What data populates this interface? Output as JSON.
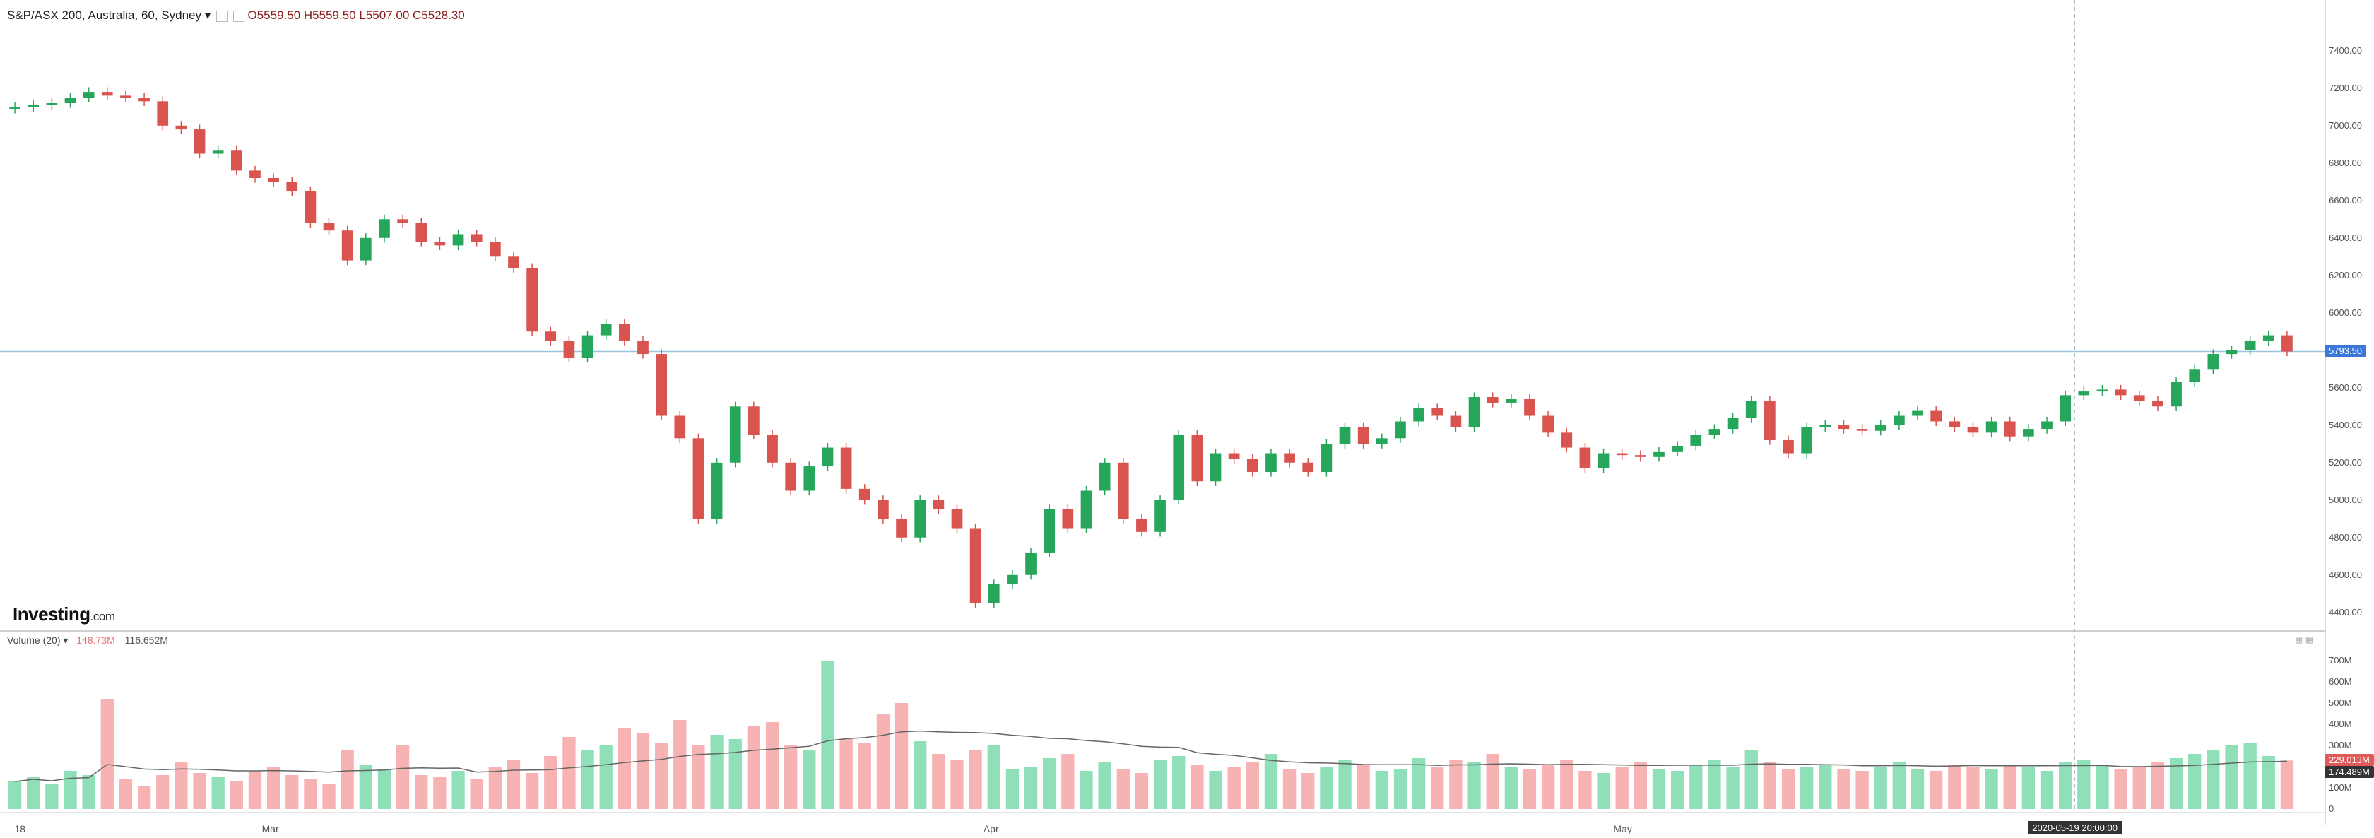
{
  "header": {
    "symbol": "S&P/ASX 200, Australia, 60, Sydney",
    "open": "O5559.50",
    "high": "H5559.50",
    "low": "L5507.00",
    "close": "C5528.30"
  },
  "volume_legend": {
    "label": "Volume (20)",
    "value1": "148.73M",
    "value2": "116.652M"
  },
  "logo": {
    "brand": "Investing",
    "domain": ".com"
  },
  "price_tag": "5793.50",
  "volume_tags": [
    "229.013M",
    "174.489M"
  ],
  "crosshair_time": "2020-05-19 20:00:00",
  "colors": {
    "up": "#26a65b",
    "down": "#d9534f",
    "vol_up": "#8fe0b8",
    "vol_down": "#f7b3b3",
    "price_line": "#9cc3e0",
    "tag": "#3c78d8"
  },
  "chart_data": {
    "type": "candlestick",
    "price_axis": [
      "7400.00",
      "7200.00",
      "7000.00",
      "6800.00",
      "6600.00",
      "6400.00",
      "6200.00",
      "6000.00",
      "5600.00",
      "5400.00",
      "5200.00",
      "5000.00",
      "4800.00",
      "4600.00",
      "4400.00"
    ],
    "volume_axis": [
      "700M",
      "600M",
      "500M",
      "400M",
      "300M",
      "100M",
      "0"
    ],
    "x_labels": [
      "18",
      "Mar",
      "Apr",
      "May"
    ],
    "ylim": [
      4350,
      7520
    ],
    "series": [
      {
        "name": "Close",
        "values": [
          7100,
          7110,
          7120,
          7150,
          7180,
          7160,
          7150,
          7130,
          7000,
          6980,
          6850,
          6870,
          6760,
          6720,
          6700,
          6650,
          6480,
          6440,
          6280,
          6400,
          6500,
          6480,
          6380,
          6360,
          6420,
          6380,
          6300,
          6240,
          5900,
          5850,
          5760,
          5880,
          5940,
          5850,
          5780,
          5450,
          5330,
          4900,
          5200,
          5500,
          5350,
          5200,
          5050,
          5180,
          5280,
          5060,
          5000,
          4900,
          4800,
          5000,
          4950,
          4850,
          4450,
          4550,
          4600,
          4720,
          4950,
          4850,
          5050,
          5200,
          4900,
          4830,
          5000,
          5350,
          5100,
          5250,
          5220,
          5150,
          5250,
          5200,
          5150,
          5300,
          5390,
          5300,
          5330,
          5420,
          5490,
          5450,
          5390,
          5550,
          5520,
          5540,
          5450,
          5360,
          5280,
          5170,
          5250,
          5240,
          5230,
          5260,
          5290,
          5350,
          5380,
          5440,
          5530,
          5320,
          5250,
          5390,
          5400,
          5380,
          5370,
          5400,
          5450,
          5480,
          5420,
          5390,
          5360,
          5420,
          5340,
          5380,
          5420,
          5560,
          5580,
          5590,
          5560,
          5530,
          5500,
          5630,
          5700,
          5780,
          5800,
          5850,
          5880,
          5793.5
        ]
      },
      {
        "name": "Volume (20)",
        "values": [
          130,
          150,
          120,
          180,
          160,
          520,
          140,
          110,
          160,
          220,
          170,
          150,
          130,
          180,
          200,
          160,
          140,
          120,
          280,
          210,
          190,
          300,
          160,
          150,
          180,
          140,
          200,
          230,
          170,
          250,
          340,
          280,
          300,
          380,
          360,
          310,
          420,
          300,
          350,
          330,
          390,
          410,
          300,
          280,
          700,
          330,
          310,
          450,
          500,
          320,
          260,
          230,
          280,
          300,
          190,
          200,
          240,
          260,
          180,
          220,
          190,
          170,
          230,
          250,
          210,
          180,
          200,
          220,
          260,
          190,
          170,
          200,
          230,
          210,
          180,
          190,
          240,
          200,
          230,
          220,
          260,
          200,
          190,
          210,
          230,
          180,
          170,
          200,
          220,
          190,
          180,
          210,
          230,
          200,
          280,
          220,
          190,
          200,
          210,
          190,
          180,
          200,
          220,
          190,
          180,
          210,
          200,
          190,
          210,
          200,
          180,
          220,
          230,
          210,
          190,
          200,
          220,
          240,
          260,
          280,
          300,
          310,
          250,
          229
        ]
      }
    ]
  }
}
